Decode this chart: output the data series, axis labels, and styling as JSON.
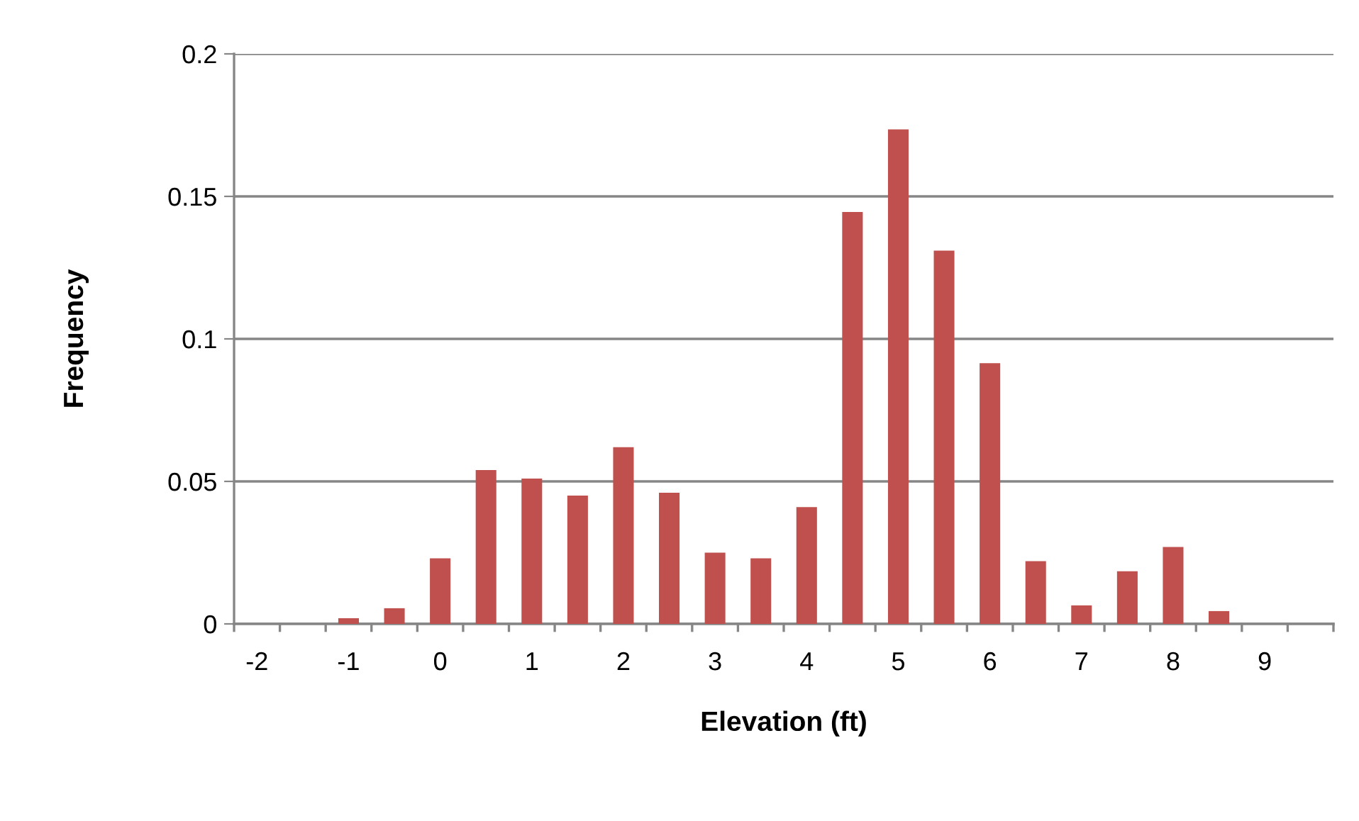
{
  "chart_data": {
    "type": "bar",
    "xlabel": "Elevation (ft)",
    "ylabel": "Frequency",
    "categories": [
      "-2",
      null,
      "-1",
      null,
      "0",
      null,
      "1",
      null,
      "2",
      null,
      "3",
      null,
      "4",
      null,
      "5",
      null,
      "6",
      null,
      "7",
      null,
      "8",
      null,
      "9",
      null
    ],
    "values": [
      0,
      0,
      0.002,
      0.0055,
      0.023,
      0.054,
      0.051,
      0.045,
      0.062,
      0.046,
      0.025,
      0.023,
      0.041,
      0.1445,
      0.1735,
      0.131,
      0.0915,
      0.022,
      0.0065,
      0.0185,
      0.027,
      0.0045,
      null,
      0
    ],
    "color": "#c0504d",
    "ylim": [
      0,
      0.2
    ],
    "yticks": [
      0,
      0.05,
      0.1,
      0.15,
      0.2
    ],
    "grid": "y",
    "legend": false
  }
}
